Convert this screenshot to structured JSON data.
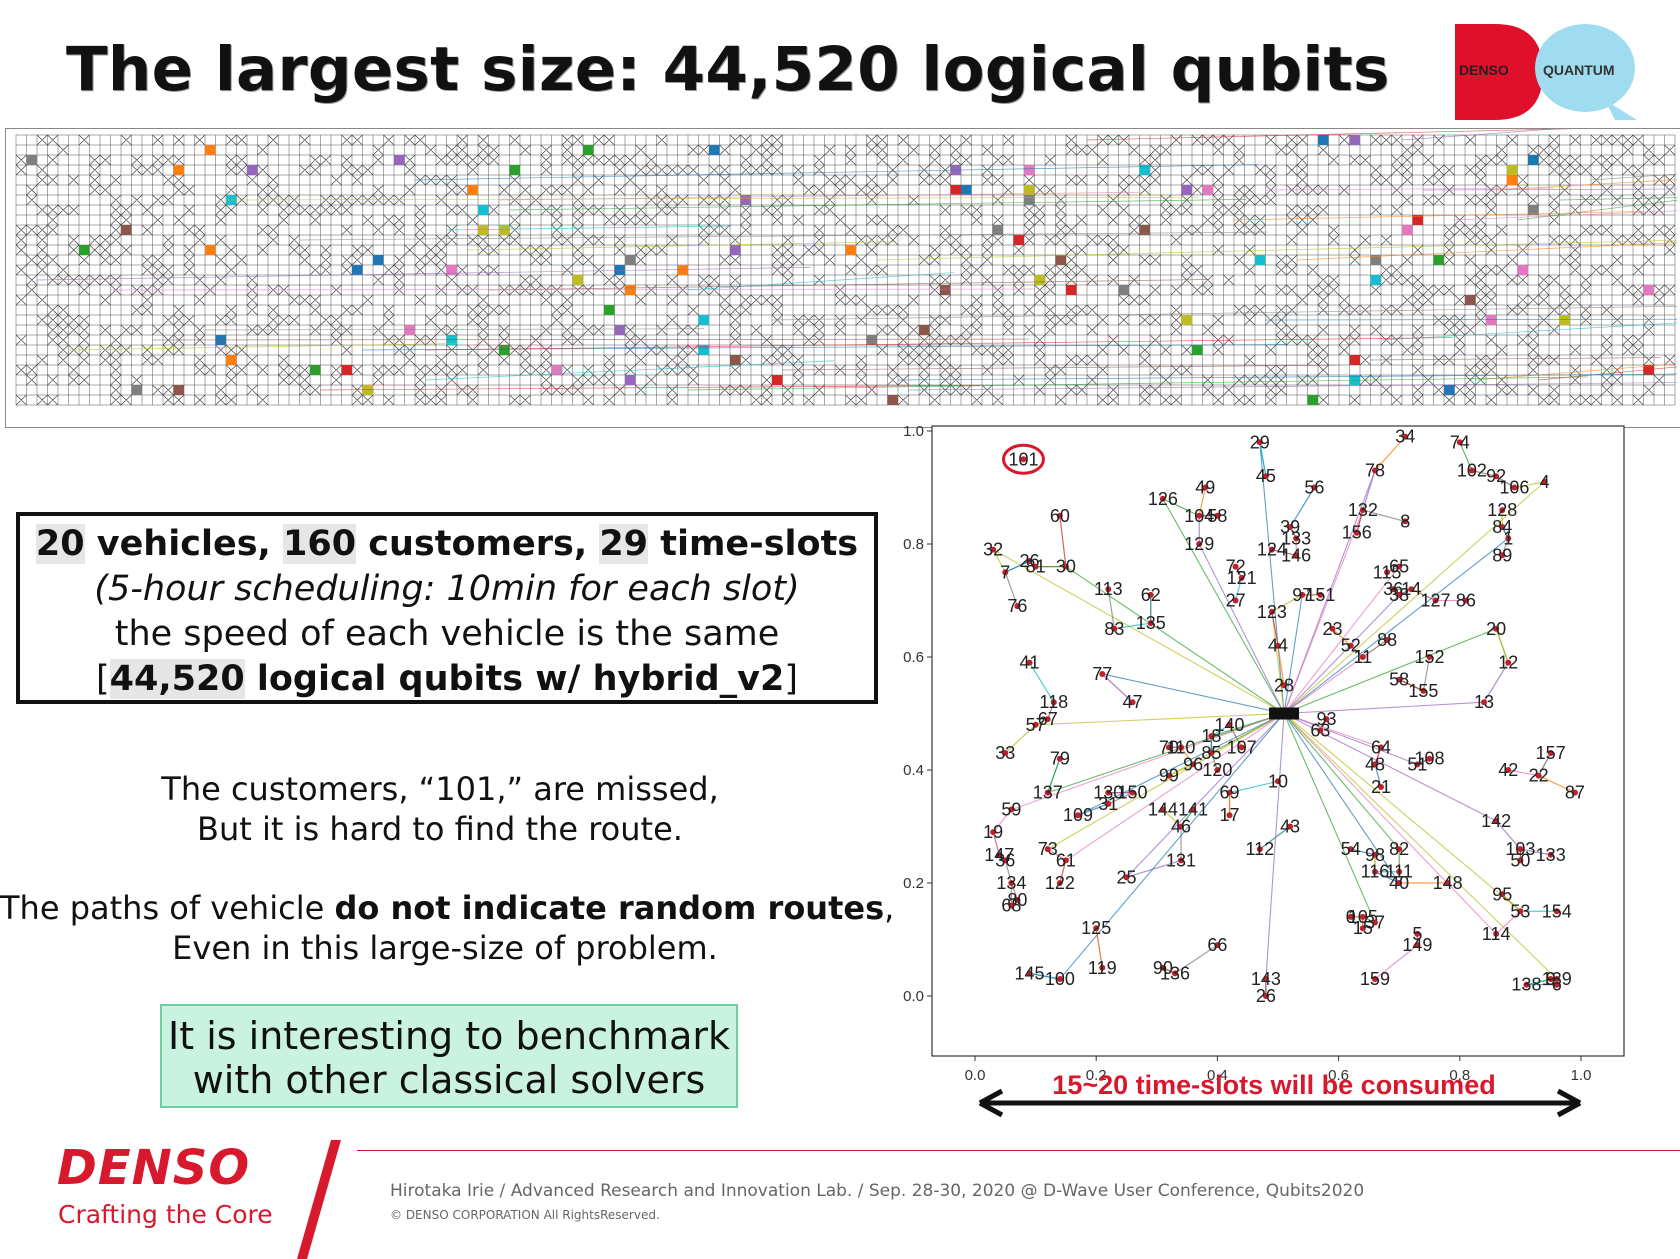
{
  "title": {
    "prefix": "The largest size: ",
    "emphasis": "44,520 logical qubits"
  },
  "logo": {
    "left": "DENSO",
    "cross": "×",
    "right": "QUANTUM"
  },
  "info_box": {
    "l1_n1": "20",
    "l1_t1": " vehicles, ",
    "l1_n2": "160",
    "l1_t2": " customers, ",
    "l1_n3": "29",
    "l1_t3": " time-slots",
    "l2": "(5-hour scheduling: 10min for each slot)",
    "l3": "the speed of each vehicle is the same",
    "l4_open": "[",
    "l4_bold": "44,520",
    "l4_text": " logical qubits w/ hybrid_v2",
    "l4_close": "]"
  },
  "para1": {
    "line1": "The customers, “101,” are missed,",
    "line2": "But it is hard to find the route."
  },
  "para2": {
    "line1_a": "The paths of vehicle ",
    "line1_b": "do not indicate random routes",
    "line1_c": ",",
    "line2": "Even in this large-size of problem."
  },
  "benchmark": {
    "line1": "It is interesting to benchmark",
    "line2": "with other classical solvers"
  },
  "route_plot": {
    "missed_label": "101",
    "arrow_label": "15~20 time-slots will be consumed",
    "colors": {
      "missed": "#d8182c",
      "arrow_text": "#d8182c",
      "nodes": "#c0202a"
    }
  },
  "chart_data": {
    "type": "scatter",
    "title": "",
    "xlabel": "",
    "ylabel": "",
    "xlim": [
      0.0,
      1.0
    ],
    "ylim": [
      0.0,
      1.0
    ],
    "xticks": [
      "0.0",
      "0.2",
      "0.4",
      "0.6",
      "0.8",
      "1.0"
    ],
    "yticks": [
      "0.0",
      "0.2",
      "0.4",
      "0.6",
      "0.8",
      "1.0"
    ],
    "depot": {
      "x": 0.51,
      "y": 0.5
    },
    "points": [
      {
        "label": "29",
        "x": 0.47,
        "y": 0.98
      },
      {
        "label": "34",
        "x": 0.71,
        "y": 0.99
      },
      {
        "label": "74",
        "x": 0.8,
        "y": 0.98
      },
      {
        "label": "101",
        "x": 0.08,
        "y": 0.95
      },
      {
        "label": "78",
        "x": 0.66,
        "y": 0.93
      },
      {
        "label": "102",
        "x": 0.82,
        "y": 0.93
      },
      {
        "label": "92",
        "x": 0.86,
        "y": 0.92
      },
      {
        "label": "106",
        "x": 0.89,
        "y": 0.9
      },
      {
        "label": "4",
        "x": 0.94,
        "y": 0.91
      },
      {
        "label": "45",
        "x": 0.48,
        "y": 0.92
      },
      {
        "label": "56",
        "x": 0.56,
        "y": 0.9
      },
      {
        "label": "49",
        "x": 0.38,
        "y": 0.9
      },
      {
        "label": "126",
        "x": 0.31,
        "y": 0.88
      },
      {
        "label": "60",
        "x": 0.14,
        "y": 0.85
      },
      {
        "label": "104",
        "x": 0.37,
        "y": 0.85
      },
      {
        "label": "58",
        "x": 0.4,
        "y": 0.85
      },
      {
        "label": "132",
        "x": 0.64,
        "y": 0.86
      },
      {
        "label": "8",
        "x": 0.71,
        "y": 0.84
      },
      {
        "label": "128",
        "x": 0.87,
        "y": 0.86
      },
      {
        "label": "84",
        "x": 0.87,
        "y": 0.83
      },
      {
        "label": "1",
        "x": 0.88,
        "y": 0.81
      },
      {
        "label": "39",
        "x": 0.52,
        "y": 0.83
      },
      {
        "label": "133",
        "x": 0.53,
        "y": 0.81
      },
      {
        "label": "156",
        "x": 0.63,
        "y": 0.82
      },
      {
        "label": "129",
        "x": 0.37,
        "y": 0.8
      },
      {
        "label": "124",
        "x": 0.49,
        "y": 0.79
      },
      {
        "label": "146",
        "x": 0.53,
        "y": 0.78
      },
      {
        "label": "89",
        "x": 0.87,
        "y": 0.78
      },
      {
        "label": "32",
        "x": 0.03,
        "y": 0.79
      },
      {
        "label": "7",
        "x": 0.05,
        "y": 0.75
      },
      {
        "label": "26",
        "x": 0.09,
        "y": 0.77
      },
      {
        "label": "81",
        "x": 0.1,
        "y": 0.76
      },
      {
        "label": "30",
        "x": 0.15,
        "y": 0.76
      },
      {
        "label": "72",
        "x": 0.43,
        "y": 0.76
      },
      {
        "label": "121",
        "x": 0.44,
        "y": 0.74
      },
      {
        "label": "115",
        "x": 0.68,
        "y": 0.75
      },
      {
        "label": "65",
        "x": 0.7,
        "y": 0.76
      },
      {
        "label": "113",
        "x": 0.22,
        "y": 0.72
      },
      {
        "label": "62",
        "x": 0.29,
        "y": 0.71
      },
      {
        "label": "27",
        "x": 0.43,
        "y": 0.7
      },
      {
        "label": "97",
        "x": 0.54,
        "y": 0.71
      },
      {
        "label": "151",
        "x": 0.57,
        "y": 0.71
      },
      {
        "label": "36",
        "x": 0.69,
        "y": 0.72
      },
      {
        "label": "14",
        "x": 0.72,
        "y": 0.72
      },
      {
        "label": "38",
        "x": 0.7,
        "y": 0.71
      },
      {
        "label": "127",
        "x": 0.76,
        "y": 0.7
      },
      {
        "label": "86",
        "x": 0.81,
        "y": 0.7
      },
      {
        "label": "76",
        "x": 0.07,
        "y": 0.69
      },
      {
        "label": "123",
        "x": 0.49,
        "y": 0.68
      },
      {
        "label": "83",
        "x": 0.23,
        "y": 0.65
      },
      {
        "label": "135",
        "x": 0.29,
        "y": 0.66
      },
      {
        "label": "23",
        "x": 0.59,
        "y": 0.65
      },
      {
        "label": "20",
        "x": 0.86,
        "y": 0.65
      },
      {
        "label": "44",
        "x": 0.5,
        "y": 0.62
      },
      {
        "label": "52",
        "x": 0.62,
        "y": 0.62
      },
      {
        "label": "88",
        "x": 0.68,
        "y": 0.63
      },
      {
        "label": "11",
        "x": 0.64,
        "y": 0.6
      },
      {
        "label": "152",
        "x": 0.75,
        "y": 0.6
      },
      {
        "label": "12",
        "x": 0.88,
        "y": 0.59
      },
      {
        "label": "41",
        "x": 0.09,
        "y": 0.59
      },
      {
        "label": "77",
        "x": 0.21,
        "y": 0.57
      },
      {
        "label": "28",
        "x": 0.51,
        "y": 0.55
      },
      {
        "label": "58",
        "x": 0.7,
        "y": 0.56
      },
      {
        "label": "155",
        "x": 0.74,
        "y": 0.54
      },
      {
        "label": "13",
        "x": 0.84,
        "y": 0.52
      },
      {
        "label": "118",
        "x": 0.13,
        "y": 0.52
      },
      {
        "label": "47",
        "x": 0.26,
        "y": 0.52
      },
      {
        "label": "67",
        "x": 0.12,
        "y": 0.49
      },
      {
        "label": "57",
        "x": 0.1,
        "y": 0.48
      },
      {
        "label": "140",
        "x": 0.42,
        "y": 0.48
      },
      {
        "label": "93",
        "x": 0.58,
        "y": 0.49
      },
      {
        "label": "63",
        "x": 0.57,
        "y": 0.47
      },
      {
        "label": "18",
        "x": 0.39,
        "y": 0.46
      },
      {
        "label": "70",
        "x": 0.32,
        "y": 0.44
      },
      {
        "label": "110",
        "x": 0.34,
        "y": 0.44
      },
      {
        "label": "107",
        "x": 0.44,
        "y": 0.44
      },
      {
        "label": "64",
        "x": 0.67,
        "y": 0.44
      },
      {
        "label": "157",
        "x": 0.95,
        "y": 0.43
      },
      {
        "label": "33",
        "x": 0.05,
        "y": 0.43
      },
      {
        "label": "79",
        "x": 0.14,
        "y": 0.42
      },
      {
        "label": "85",
        "x": 0.39,
        "y": 0.43
      },
      {
        "label": "96",
        "x": 0.36,
        "y": 0.41
      },
      {
        "label": "120",
        "x": 0.4,
        "y": 0.4
      },
      {
        "label": "48",
        "x": 0.66,
        "y": 0.41
      },
      {
        "label": "51",
        "x": 0.73,
        "y": 0.41
      },
      {
        "label": "108",
        "x": 0.75,
        "y": 0.42
      },
      {
        "label": "42",
        "x": 0.88,
        "y": 0.4
      },
      {
        "label": "22",
        "x": 0.93,
        "y": 0.39
      },
      {
        "label": "99",
        "x": 0.32,
        "y": 0.39
      },
      {
        "label": "10",
        "x": 0.5,
        "y": 0.38
      },
      {
        "label": "21",
        "x": 0.67,
        "y": 0.37
      },
      {
        "label": "87",
        "x": 0.99,
        "y": 0.36
      },
      {
        "label": "137",
        "x": 0.12,
        "y": 0.36
      },
      {
        "label": "130",
        "x": 0.22,
        "y": 0.36
      },
      {
        "label": "150",
        "x": 0.26,
        "y": 0.36
      },
      {
        "label": "69",
        "x": 0.42,
        "y": 0.36
      },
      {
        "label": "59",
        "x": 0.06,
        "y": 0.33
      },
      {
        "label": "31",
        "x": 0.22,
        "y": 0.34
      },
      {
        "label": "144",
        "x": 0.31,
        "y": 0.33
      },
      {
        "label": "141",
        "x": 0.36,
        "y": 0.33
      },
      {
        "label": "109",
        "x": 0.17,
        "y": 0.32
      },
      {
        "label": "17",
        "x": 0.42,
        "y": 0.32
      },
      {
        "label": "46",
        "x": 0.34,
        "y": 0.3
      },
      {
        "label": "43",
        "x": 0.52,
        "y": 0.3
      },
      {
        "label": "142",
        "x": 0.86,
        "y": 0.31
      },
      {
        "label": "19",
        "x": 0.03,
        "y": 0.29
      },
      {
        "label": "147",
        "x": 0.04,
        "y": 0.25
      },
      {
        "label": "36",
        "x": 0.05,
        "y": 0.24
      },
      {
        "label": "73",
        "x": 0.12,
        "y": 0.26
      },
      {
        "label": "112",
        "x": 0.47,
        "y": 0.26
      },
      {
        "label": "54",
        "x": 0.62,
        "y": 0.26
      },
      {
        "label": "98",
        "x": 0.66,
        "y": 0.25
      },
      {
        "label": "82",
        "x": 0.7,
        "y": 0.26
      },
      {
        "label": "103",
        "x": 0.9,
        "y": 0.26
      },
      {
        "label": "133",
        "x": 0.95,
        "y": 0.25
      },
      {
        "label": "50",
        "x": 0.9,
        "y": 0.24
      },
      {
        "label": "61",
        "x": 0.15,
        "y": 0.24
      },
      {
        "label": "131",
        "x": 0.34,
        "y": 0.24
      },
      {
        "label": "116",
        "x": 0.66,
        "y": 0.22
      },
      {
        "label": "111",
        "x": 0.7,
        "y": 0.22
      },
      {
        "label": "40",
        "x": 0.7,
        "y": 0.2
      },
      {
        "label": "148",
        "x": 0.78,
        "y": 0.2
      },
      {
        "label": "134",
        "x": 0.06,
        "y": 0.2
      },
      {
        "label": "122",
        "x": 0.14,
        "y": 0.2
      },
      {
        "label": "25",
        "x": 0.25,
        "y": 0.21
      },
      {
        "label": "95",
        "x": 0.87,
        "y": 0.18
      },
      {
        "label": "80",
        "x": 0.07,
        "y": 0.17
      },
      {
        "label": "68",
        "x": 0.06,
        "y": 0.16
      },
      {
        "label": "53",
        "x": 0.9,
        "y": 0.15
      },
      {
        "label": "154",
        "x": 0.96,
        "y": 0.15
      },
      {
        "label": "0",
        "x": 0.62,
        "y": 0.14
      },
      {
        "label": "105",
        "x": 0.64,
        "y": 0.14
      },
      {
        "label": "37",
        "x": 0.66,
        "y": 0.13
      },
      {
        "label": "15",
        "x": 0.64,
        "y": 0.12
      },
      {
        "label": "125",
        "x": 0.2,
        "y": 0.12
      },
      {
        "label": "5",
        "x": 0.73,
        "y": 0.11
      },
      {
        "label": "114",
        "x": 0.86,
        "y": 0.11
      },
      {
        "label": "66",
        "x": 0.4,
        "y": 0.09
      },
      {
        "label": "149",
        "x": 0.73,
        "y": 0.09
      },
      {
        "label": "145",
        "x": 0.09,
        "y": 0.04
      },
      {
        "label": "100",
        "x": 0.14,
        "y": 0.03
      },
      {
        "label": "119",
        "x": 0.21,
        "y": 0.05
      },
      {
        "label": "90",
        "x": 0.31,
        "y": 0.05
      },
      {
        "label": "136",
        "x": 0.33,
        "y": 0.04
      },
      {
        "label": "143",
        "x": 0.48,
        "y": 0.03
      },
      {
        "label": "26",
        "x": 0.48,
        "y": 0.0
      },
      {
        "label": "159",
        "x": 0.66,
        "y": 0.03
      },
      {
        "label": "138",
        "x": 0.91,
        "y": 0.02
      },
      {
        "label": "139",
        "x": 0.96,
        "y": 0.03
      },
      {
        "label": "9",
        "x": 0.95,
        "y": 0.03
      },
      {
        "label": "6",
        "x": 0.96,
        "y": 0.02
      }
    ]
  },
  "footer": {
    "brand": "DENSO",
    "tagline": "Crafting the Core",
    "credit": "Hirotaka Irie  / Advanced Research and Innovation Lab. / Sep. 28-30, 2020 @ D-Wave User Conference, Qubits2020",
    "copyright": "© DENSO CORPORATION All RightsReserved."
  }
}
